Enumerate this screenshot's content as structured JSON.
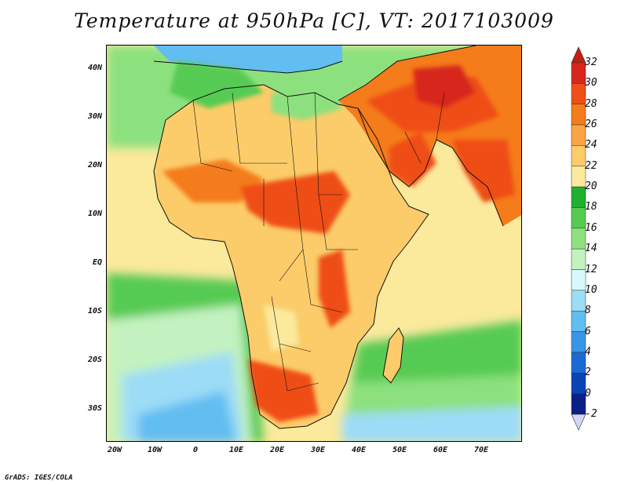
{
  "title": "Temperature at 950hPa [C], VT: 2017103009",
  "footer": "GrADS: IGES/COLA",
  "lat_ticks": [
    "40N",
    "30N",
    "20N",
    "10N",
    "EQ",
    "10S",
    "20S",
    "30S"
  ],
  "lon_ticks": [
    "20W",
    "10W",
    "0",
    "10E",
    "20E",
    "30E",
    "40E",
    "50E",
    "60E",
    "70E"
  ],
  "colorbar": {
    "labels": [
      "32",
      "30",
      "28",
      "26",
      "24",
      "22",
      "20",
      "18",
      "16",
      "14",
      "12",
      "10",
      "8",
      "6",
      "4",
      "2",
      "0",
      "-2"
    ],
    "colors": [
      "#d7261e",
      "#ef4e18",
      "#f57c1a",
      "#f9a545",
      "#fbcc69",
      "#fbe99c",
      "#1fb030",
      "#56cb52",
      "#8ce17e",
      "#c3f2c0",
      "#d9f9fb",
      "#9ddcf6",
      "#62bdf1",
      "#3a95e6",
      "#1a6ad5",
      "#0b44b5",
      "#0a1f87"
    ]
  },
  "map": {
    "lat_range": [
      -36,
      45
    ],
    "lon_range": [
      -22,
      80
    ],
    "colors": {
      "ocean_warm": "#fbe99c",
      "ocean_mid": "#8ce17e",
      "ocean_cool": "#c3f2c0",
      "ocean_cold": "#9ddcf6",
      "land_hot": "#ef4e18",
      "land_warm": "#f57c1a",
      "land_mild": "#fbcc69",
      "land_cool": "#56cb52",
      "land_cold": "#62bdf1"
    }
  }
}
